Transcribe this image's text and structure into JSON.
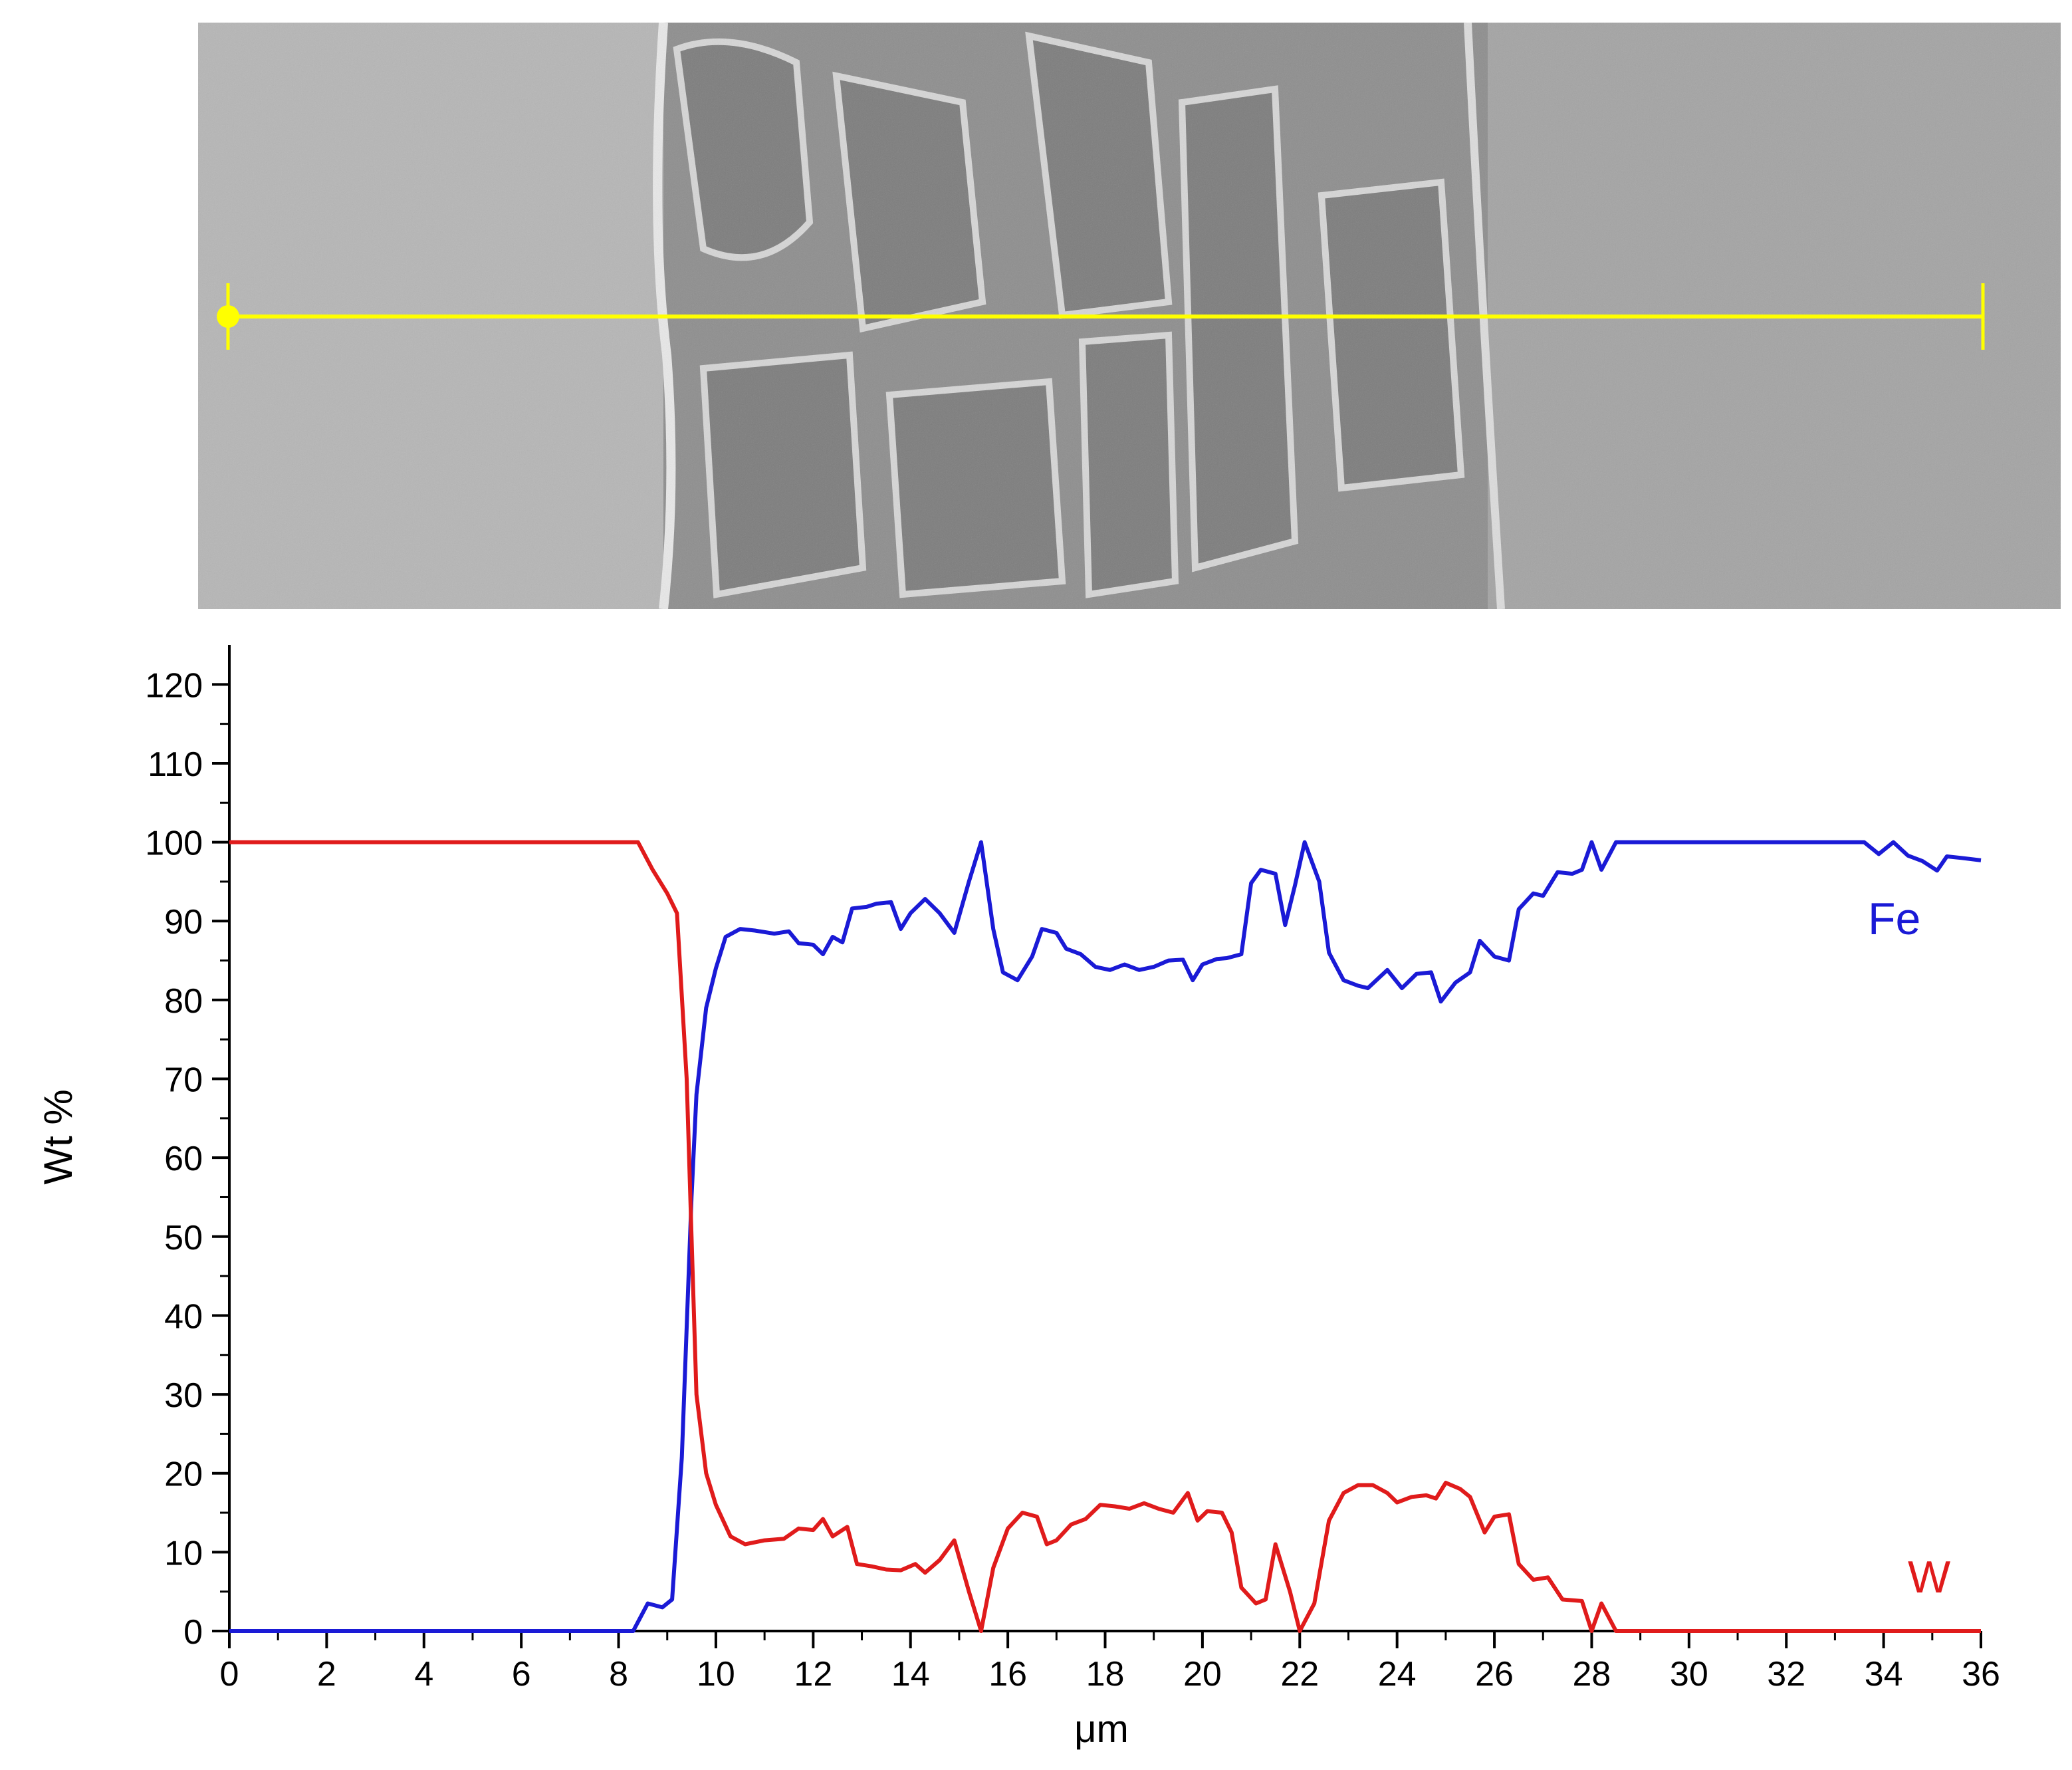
{
  "figure": {
    "sem_image": {
      "description_icon": "sem-micrograph-image",
      "scan_line_color": "#ffff00",
      "regions": [
        {
          "name": "left-phase",
          "tone": "#b4b4b4"
        },
        {
          "name": "interface-zone",
          "tone": "#8c8c8c"
        },
        {
          "name": "right-phase",
          "tone": "#a6a6a6"
        }
      ]
    }
  },
  "chart_data": {
    "type": "line",
    "title": "",
    "xlabel": "μm",
    "ylabel": "Wt %",
    "xlim": [
      0,
      36
    ],
    "ylim": [
      0,
      125
    ],
    "x_ticks": [
      0,
      2,
      4,
      6,
      8,
      10,
      12,
      14,
      16,
      18,
      20,
      22,
      24,
      26,
      28,
      30,
      32,
      34,
      36
    ],
    "y_ticks": [
      0,
      10,
      20,
      30,
      40,
      50,
      60,
      70,
      80,
      90,
      100,
      110,
      120
    ],
    "grid": false,
    "legend": "inline labels at right",
    "series": [
      {
        "name": "Fe",
        "color": "#1a1ad6",
        "points": [
          [
            0,
            0
          ],
          [
            8.3,
            0
          ],
          [
            8.6,
            3.5
          ],
          [
            8.9,
            3
          ],
          [
            9.1,
            4
          ],
          [
            9.3,
            22
          ],
          [
            9.5,
            55
          ],
          [
            9.6,
            68
          ],
          [
            9.8,
            79
          ],
          [
            10.0,
            84
          ],
          [
            10.2,
            88
          ],
          [
            10.5,
            89
          ],
          [
            10.8,
            88.8
          ],
          [
            11.2,
            88.4
          ],
          [
            11.5,
            88.7
          ],
          [
            11.7,
            87.2
          ],
          [
            12.0,
            87.0
          ],
          [
            12.2,
            85.8
          ],
          [
            12.4,
            88.0
          ],
          [
            12.6,
            87.3
          ],
          [
            12.8,
            91.6
          ],
          [
            13.1,
            91.8
          ],
          [
            13.3,
            92.2
          ],
          [
            13.6,
            92.4
          ],
          [
            13.8,
            89.0
          ],
          [
            14.0,
            91.0
          ],
          [
            14.3,
            92.8
          ],
          [
            14.6,
            91.0
          ],
          [
            14.9,
            88.5
          ],
          [
            15.2,
            95
          ],
          [
            15.45,
            100
          ],
          [
            15.7,
            89
          ],
          [
            15.9,
            83.5
          ],
          [
            16.2,
            82.5
          ],
          [
            16.5,
            85.5
          ],
          [
            16.7,
            89.0
          ],
          [
            17.0,
            88.5
          ],
          [
            17.2,
            86.5
          ],
          [
            17.5,
            85.8
          ],
          [
            17.8,
            84.2
          ],
          [
            18.1,
            83.8
          ],
          [
            18.4,
            84.5
          ],
          [
            18.7,
            83.8
          ],
          [
            19.0,
            84.2
          ],
          [
            19.3,
            85.0
          ],
          [
            19.6,
            85.1
          ],
          [
            19.8,
            82.5
          ],
          [
            20.0,
            84.5
          ],
          [
            20.3,
            85.2
          ],
          [
            20.5,
            85.3
          ],
          [
            20.8,
            85.8
          ],
          [
            21.0,
            94.8
          ],
          [
            21.2,
            96.5
          ],
          [
            21.5,
            96.0
          ],
          [
            21.7,
            89.5
          ],
          [
            21.9,
            94.5
          ],
          [
            22.1,
            100
          ],
          [
            22.4,
            95
          ],
          [
            22.6,
            86.0
          ],
          [
            22.9,
            82.5
          ],
          [
            23.2,
            81.8
          ],
          [
            23.4,
            81.5
          ],
          [
            23.8,
            83.8
          ],
          [
            24.1,
            81.5
          ],
          [
            24.4,
            83.3
          ],
          [
            24.7,
            83.5
          ],
          [
            24.9,
            79.8
          ],
          [
            25.2,
            82.2
          ],
          [
            25.5,
            83.5
          ],
          [
            25.7,
            87.5
          ],
          [
            26.0,
            85.5
          ],
          [
            26.3,
            85.0
          ],
          [
            26.5,
            91.5
          ],
          [
            26.8,
            93.5
          ],
          [
            27.0,
            93.2
          ],
          [
            27.3,
            96.2
          ],
          [
            27.6,
            96.0
          ],
          [
            27.8,
            96.5
          ],
          [
            28.0,
            100
          ],
          [
            28.2,
            96.5
          ],
          [
            28.5,
            100
          ],
          [
            33.6,
            100
          ],
          [
            33.9,
            98.5
          ],
          [
            34.2,
            100
          ],
          [
            34.5,
            98.3
          ],
          [
            34.8,
            97.6
          ],
          [
            35.1,
            96.4
          ],
          [
            35.3,
            98.2
          ],
          [
            35.6,
            98.0
          ],
          [
            36.0,
            97.7
          ]
        ]
      },
      {
        "name": "W",
        "color": "#e01b1b",
        "points": [
          [
            0,
            100
          ],
          [
            8.4,
            100
          ],
          [
            8.7,
            96.5
          ],
          [
            9.0,
            93.5
          ],
          [
            9.2,
            91
          ],
          [
            9.4,
            70
          ],
          [
            9.5,
            50
          ],
          [
            9.6,
            30
          ],
          [
            9.8,
            20
          ],
          [
            10.0,
            16
          ],
          [
            10.3,
            12
          ],
          [
            10.6,
            11
          ],
          [
            11.0,
            11.5
          ],
          [
            11.4,
            11.7
          ],
          [
            11.7,
            13.0
          ],
          [
            12.0,
            12.8
          ],
          [
            12.2,
            14.2
          ],
          [
            12.4,
            12.0
          ],
          [
            12.7,
            13.2
          ],
          [
            12.9,
            8.5
          ],
          [
            13.2,
            8.2
          ],
          [
            13.5,
            7.8
          ],
          [
            13.8,
            7.7
          ],
          [
            14.1,
            8.5
          ],
          [
            14.3,
            7.4
          ],
          [
            14.6,
            9.0
          ],
          [
            14.9,
            11.5
          ],
          [
            15.2,
            5
          ],
          [
            15.45,
            0
          ],
          [
            15.7,
            8
          ],
          [
            16.0,
            13.0
          ],
          [
            16.3,
            15.0
          ],
          [
            16.6,
            14.5
          ],
          [
            16.8,
            11.0
          ],
          [
            17.0,
            11.5
          ],
          [
            17.3,
            13.5
          ],
          [
            17.6,
            14.2
          ],
          [
            17.9,
            16.0
          ],
          [
            18.2,
            15.8
          ],
          [
            18.5,
            15.5
          ],
          [
            18.8,
            16.2
          ],
          [
            19.1,
            15.5
          ],
          [
            19.4,
            15.0
          ],
          [
            19.7,
            17.5
          ],
          [
            19.9,
            14.0
          ],
          [
            20.1,
            15.2
          ],
          [
            20.4,
            15.0
          ],
          [
            20.6,
            12.5
          ],
          [
            20.8,
            5.5
          ],
          [
            21.1,
            3.5
          ],
          [
            21.3,
            4.0
          ],
          [
            21.5,
            11.0
          ],
          [
            21.8,
            5.0
          ],
          [
            22.0,
            0
          ],
          [
            22.3,
            3.5
          ],
          [
            22.6,
            14.0
          ],
          [
            22.9,
            17.5
          ],
          [
            23.2,
            18.5
          ],
          [
            23.5,
            18.5
          ],
          [
            23.8,
            17.5
          ],
          [
            24.0,
            16.3
          ],
          [
            24.3,
            17.0
          ],
          [
            24.6,
            17.2
          ],
          [
            24.8,
            16.8
          ],
          [
            25.0,
            18.8
          ],
          [
            25.3,
            18.0
          ],
          [
            25.5,
            17.0
          ],
          [
            25.8,
            12.5
          ],
          [
            26.0,
            14.5
          ],
          [
            26.3,
            14.8
          ],
          [
            26.5,
            8.5
          ],
          [
            26.8,
            6.5
          ],
          [
            27.1,
            6.8
          ],
          [
            27.4,
            4.0
          ],
          [
            27.8,
            3.8
          ],
          [
            28.0,
            0
          ],
          [
            28.2,
            3.5
          ],
          [
            28.5,
            0
          ],
          [
            36.0,
            0
          ]
        ]
      }
    ]
  }
}
